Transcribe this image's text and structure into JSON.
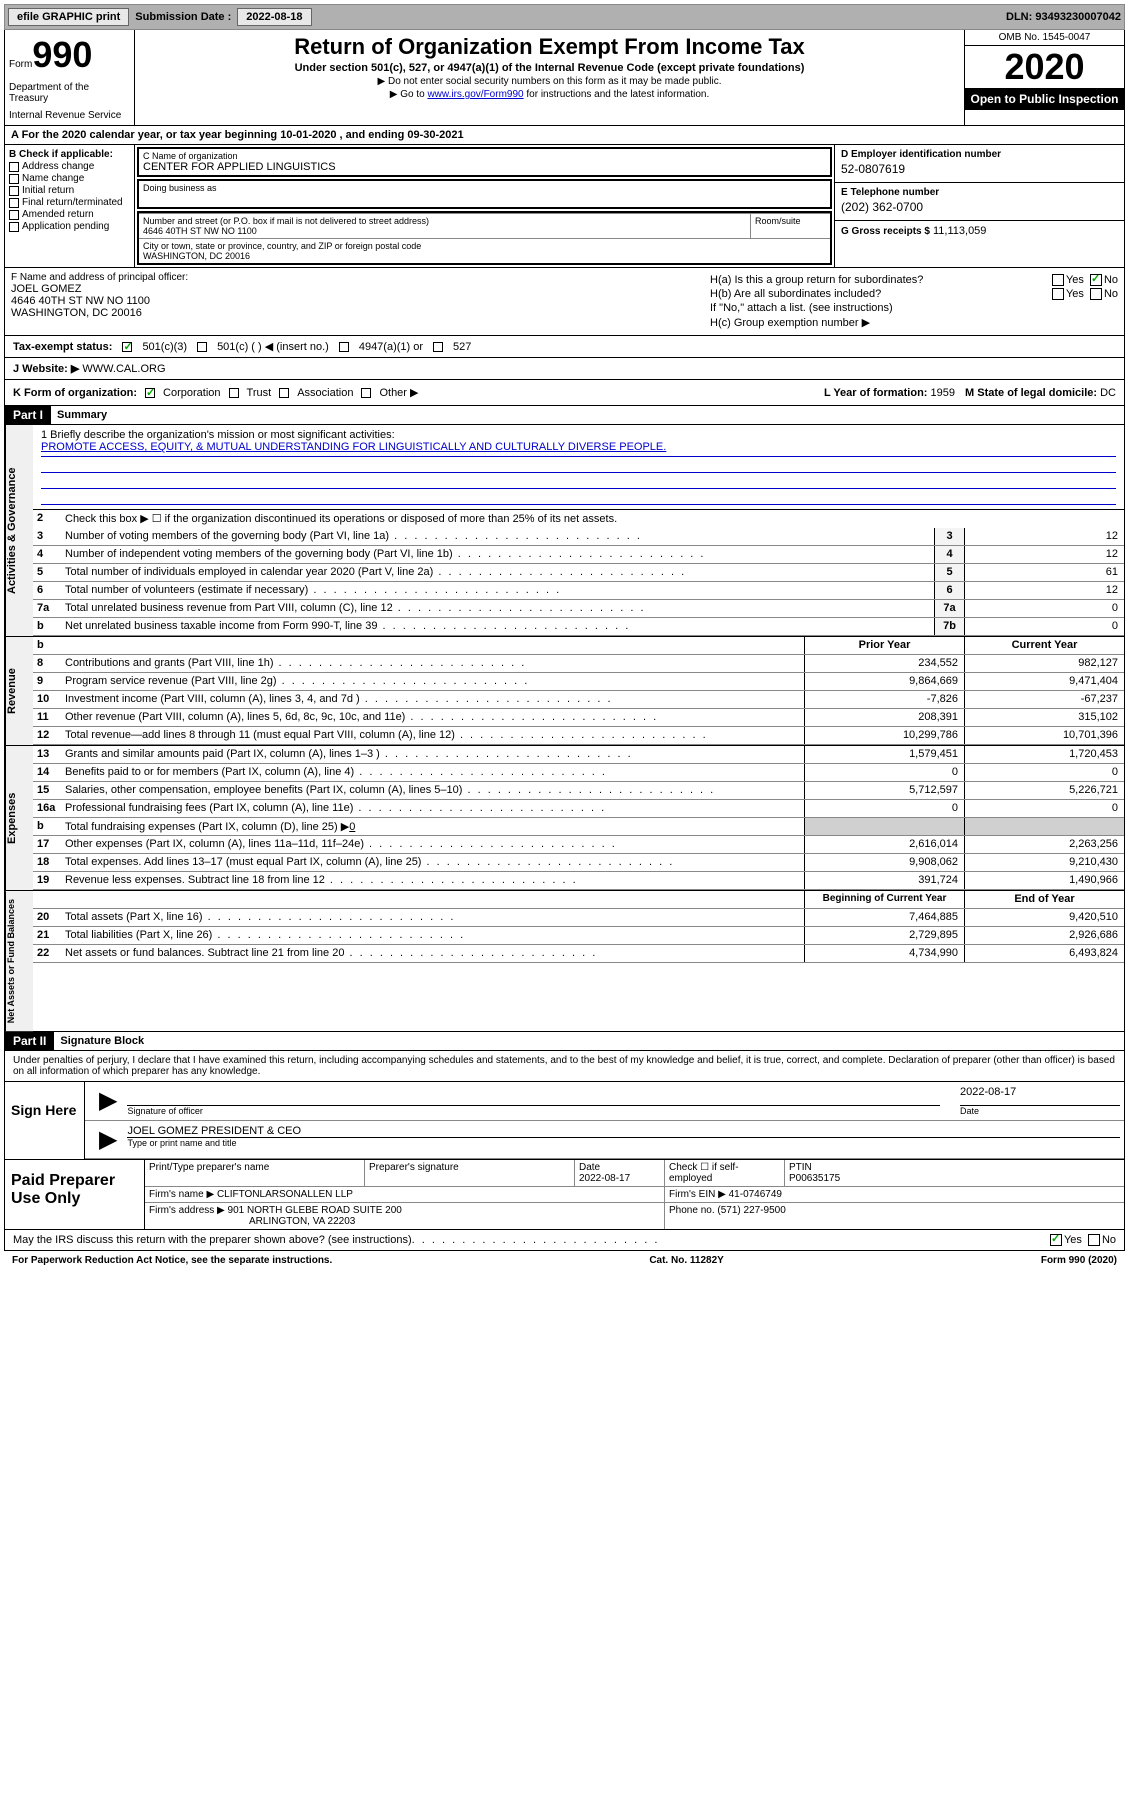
{
  "toolbar": {
    "efile_label": "efile GRAPHIC print",
    "submission_label": "Submission Date :",
    "submission_date": "2022-08-18",
    "dln_label": "DLN:",
    "dln": "93493230007042"
  },
  "header": {
    "form_label": "Form",
    "form_number": "990",
    "dept1": "Department of the Treasury",
    "dept2": "Internal Revenue Service",
    "title": "Return of Organization Exempt From Income Tax",
    "subtitle": "Under section 501(c), 527, or 4947(a)(1) of the Internal Revenue Code (except private foundations)",
    "note1": "▶ Do not enter social security numbers on this form as it may be made public.",
    "note2_pre": "▶ Go to ",
    "note2_link": "www.irs.gov/Form990",
    "note2_post": " for instructions and the latest information.",
    "omb": "OMB No. 1545-0047",
    "year": "2020",
    "open_public": "Open to Public Inspection"
  },
  "period": {
    "label_a": "A For the 2020 calendar year, or tax year beginning ",
    "begin": "10-01-2020",
    "mid": " , and ending ",
    "end": "09-30-2021"
  },
  "section_b": {
    "header": "B Check if applicable:",
    "items": [
      "Address change",
      "Name change",
      "Initial return",
      "Final return/terminated",
      "Amended return",
      "Application pending"
    ]
  },
  "section_c": {
    "name_label": "C Name of organization",
    "name": "CENTER FOR APPLIED LINGUISTICS",
    "dba_label": "Doing business as",
    "street_label": "Number and street (or P.O. box if mail is not delivered to street address)",
    "street": "4646 40TH ST NW NO 1100",
    "room_label": "Room/suite",
    "city_label": "City or town, state or province, country, and ZIP or foreign postal code",
    "city": "WASHINGTON, DC  20016"
  },
  "section_d": {
    "ein_label": "D Employer identification number",
    "ein": "52-0807619",
    "phone_label": "E Telephone number",
    "phone": "(202) 362-0700",
    "gross_label": "G Gross receipts $",
    "gross": "11,113,059"
  },
  "section_f": {
    "label": "F Name and address of principal officer:",
    "name": "JOEL GOMEZ",
    "addr1": "4646 40TH ST NW NO 1100",
    "addr2": "WASHINGTON, DC  20016"
  },
  "section_h": {
    "ha_label": "H(a)  Is this a group return for subordinates?",
    "hb_label": "H(b)  Are all subordinates included?",
    "h_note": "If \"No,\" attach a list. (see instructions)",
    "hc_label": "H(c)  Group exemption number ▶",
    "yes": "Yes",
    "no": "No"
  },
  "tax_status": {
    "label": "Tax-exempt status:",
    "opt1": "501(c)(3)",
    "opt2": "501(c) (  ) ◀ (insert no.)",
    "opt3": "4947(a)(1) or",
    "opt4": "527"
  },
  "website": {
    "label": "J   Website: ▶",
    "url": "WWW.CAL.ORG"
  },
  "section_k": {
    "label": "K Form of organization:",
    "corp": "Corporation",
    "trust": "Trust",
    "assoc": "Association",
    "other": "Other ▶",
    "l_label": "L Year of formation:",
    "l_val": "1959",
    "m_label": "M State of legal domicile:",
    "m_val": "DC"
  },
  "part1": {
    "label": "Part I",
    "title": "Summary"
  },
  "mission": {
    "q": "1  Briefly describe the organization's mission or most significant activities:",
    "text": "PROMOTE ACCESS, EQUITY, & MUTUAL UNDERSTANDING FOR LINGUISTICALLY AND CULTURALLY DIVERSE PEOPLE."
  },
  "governance": {
    "tab": "Activities & Governance",
    "line2": "Check this box ▶ ☐ if the organization discontinued its operations or disposed of more than 25% of its net assets.",
    "lines": [
      {
        "n": "3",
        "t": "Number of voting members of the governing body (Part VI, line 1a)",
        "box": "3",
        "v": "12"
      },
      {
        "n": "4",
        "t": "Number of independent voting members of the governing body (Part VI, line 1b)",
        "box": "4",
        "v": "12"
      },
      {
        "n": "5",
        "t": "Total number of individuals employed in calendar year 2020 (Part V, line 2a)",
        "box": "5",
        "v": "61"
      },
      {
        "n": "6",
        "t": "Total number of volunteers (estimate if necessary)",
        "box": "6",
        "v": "12"
      },
      {
        "n": "7a",
        "t": "Total unrelated business revenue from Part VIII, column (C), line 12",
        "box": "7a",
        "v": "0"
      },
      {
        "n": "b",
        "t": "Net unrelated business taxable income from Form 990-T, line 39",
        "box": "7b",
        "v": "0"
      }
    ]
  },
  "revenue": {
    "tab": "Revenue",
    "prior_hdr": "Prior Year",
    "current_hdr": "Current Year",
    "lines": [
      {
        "n": "8",
        "t": "Contributions and grants (Part VIII, line 1h)",
        "p": "234,552",
        "c": "982,127"
      },
      {
        "n": "9",
        "t": "Program service revenue (Part VIII, line 2g)",
        "p": "9,864,669",
        "c": "9,471,404"
      },
      {
        "n": "10",
        "t": "Investment income (Part VIII, column (A), lines 3, 4, and 7d )",
        "p": "-7,826",
        "c": "-67,237"
      },
      {
        "n": "11",
        "t": "Other revenue (Part VIII, column (A), lines 5, 6d, 8c, 9c, 10c, and 11e)",
        "p": "208,391",
        "c": "315,102"
      },
      {
        "n": "12",
        "t": "Total revenue—add lines 8 through 11 (must equal Part VIII, column (A), line 12)",
        "p": "10,299,786",
        "c": "10,701,396"
      }
    ]
  },
  "expenses": {
    "tab": "Expenses",
    "lines": [
      {
        "n": "13",
        "t": "Grants and similar amounts paid (Part IX, column (A), lines 1–3 )",
        "p": "1,579,451",
        "c": "1,720,453"
      },
      {
        "n": "14",
        "t": "Benefits paid to or for members (Part IX, column (A), line 4)",
        "p": "0",
        "c": "0"
      },
      {
        "n": "15",
        "t": "Salaries, other compensation, employee benefits (Part IX, column (A), lines 5–10)",
        "p": "5,712,597",
        "c": "5,226,721"
      },
      {
        "n": "16a",
        "t": "Professional fundraising fees (Part IX, column (A), line 11e)",
        "p": "0",
        "c": "0"
      }
    ],
    "line_b": {
      "n": "b",
      "t": "Total fundraising expenses (Part IX, column (D), line 25) ▶",
      "v": "0"
    },
    "lines2": [
      {
        "n": "17",
        "t": "Other expenses (Part IX, column (A), lines 11a–11d, 11f–24e)",
        "p": "2,616,014",
        "c": "2,263,256"
      },
      {
        "n": "18",
        "t": "Total expenses. Add lines 13–17 (must equal Part IX, column (A), line 25)",
        "p": "9,908,062",
        "c": "9,210,430"
      },
      {
        "n": "19",
        "t": "Revenue less expenses. Subtract line 18 from line 12",
        "p": "391,724",
        "c": "1,490,966"
      }
    ]
  },
  "netassets": {
    "tab": "Net Assets or Fund Balances",
    "begin_hdr": "Beginning of Current Year",
    "end_hdr": "End of Year",
    "lines": [
      {
        "n": "20",
        "t": "Total assets (Part X, line 16)",
        "p": "7,464,885",
        "c": "9,420,510"
      },
      {
        "n": "21",
        "t": "Total liabilities (Part X, line 26)",
        "p": "2,729,895",
        "c": "2,926,686"
      },
      {
        "n": "22",
        "t": "Net assets or fund balances. Subtract line 21 from line 20",
        "p": "4,734,990",
        "c": "6,493,824"
      }
    ]
  },
  "part2": {
    "label": "Part II",
    "title": "Signature Block",
    "declare": "Under penalties of perjury, I declare that I have examined this return, including accompanying schedules and statements, and to the best of my knowledge and belief, it is true, correct, and complete. Declaration of preparer (other than officer) is based on all information of which preparer has any knowledge."
  },
  "sign": {
    "label": "Sign Here",
    "sig_officer": "Signature of officer",
    "date": "2022-08-17",
    "date_label": "Date",
    "name": "JOEL GOMEZ  PRESIDENT & CEO",
    "name_label": "Type or print name and title"
  },
  "preparer": {
    "label": "Paid Preparer Use Only",
    "print_label": "Print/Type preparer's name",
    "sig_label": "Preparer's signature",
    "date_label": "Date",
    "date": "2022-08-17",
    "check_label": "Check ☐ if self-employed",
    "ptin_label": "PTIN",
    "ptin": "P00635175",
    "firm_label": "Firm's name     ▶",
    "firm": "CLIFTONLARSONALLEN LLP",
    "ein_label": "Firm's EIN ▶",
    "ein": "41-0746749",
    "addr_label": "Firm's address ▶",
    "addr1": "901 NORTH GLEBE ROAD SUITE 200",
    "addr2": "ARLINGTON, VA  22203",
    "phone_label": "Phone no.",
    "phone": "(571) 227-9500"
  },
  "footer": {
    "discuss": "May the IRS discuss this return with the preparer shown above? (see instructions)",
    "yes": "Yes",
    "no": "No",
    "paperwork": "For Paperwork Reduction Act Notice, see the separate instructions.",
    "catno": "Cat. No. 11282Y",
    "formref": "Form 990 (2020)"
  }
}
